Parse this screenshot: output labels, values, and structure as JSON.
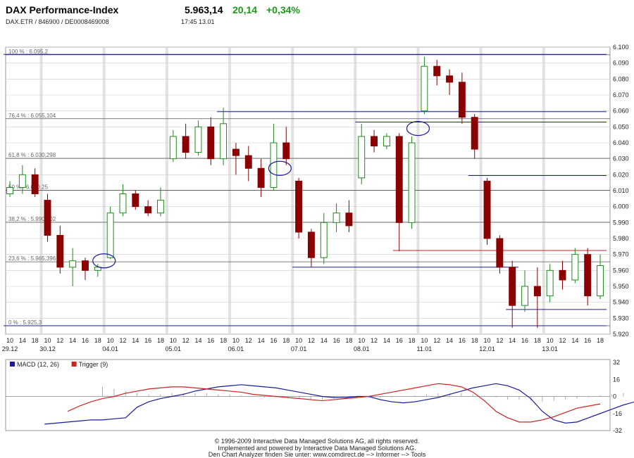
{
  "header": {
    "title": "DAX Performance-Index",
    "subtitle": "DAX.ETR  /  846900  /  DE0008469008",
    "price": "5.963,14",
    "change": "20,14",
    "change_pct": "+0,34%",
    "time": "17:45   13.01"
  },
  "colors": {
    "up": "#1d8a1d",
    "down": "#8b0000",
    "hline": "#1a1a9a",
    "red_line": "#cc2222",
    "grid": "#cccccc",
    "fib": "#555555"
  },
  "chart_data": [
    {
      "type": "candlestick",
      "ylim": [
        5920,
        6100
      ],
      "yticks": [
        "6.100",
        "6.090",
        "6.080",
        "6.070",
        "6.060",
        "6.050",
        "6.040",
        "6.030",
        "6.020",
        "6.010",
        "6.000",
        "5.990",
        "5.980",
        "5.970",
        "5.960",
        "5.950",
        "5.940",
        "5.930",
        "5.920"
      ],
      "ytick_values": [
        6100,
        6090,
        6080,
        6070,
        6060,
        6050,
        6040,
        6030,
        6020,
        6010,
        6000,
        5990,
        5980,
        5970,
        5960,
        5950,
        5940,
        5930,
        5920
      ],
      "hour_ticks": [
        "10",
        "14",
        "18",
        "10",
        "12",
        "14",
        "16",
        "18",
        "10",
        "12",
        "14",
        "16",
        "18",
        "10",
        "12",
        "14",
        "16",
        "18",
        "10",
        "12",
        "14",
        "16",
        "18",
        "10",
        "12",
        "14",
        "16",
        "18",
        "10",
        "12",
        "14",
        "16",
        "18",
        "10",
        "12",
        "14",
        "16",
        "18",
        "10",
        "12",
        "14",
        "16",
        "18",
        "10",
        "12",
        "14",
        "16",
        "18"
      ],
      "day_labels": [
        {
          "label": "29.12",
          "idx": 0
        },
        {
          "label": "30.12",
          "idx": 3
        },
        {
          "label": "04.01",
          "idx": 8
        },
        {
          "label": "05.01",
          "idx": 13
        },
        {
          "label": "06.01",
          "idx": 18
        },
        {
          "label": "07.01",
          "idx": 23
        },
        {
          "label": "08.01",
          "idx": 28
        },
        {
          "label": "11.01",
          "idx": 33
        },
        {
          "label": "12.01",
          "idx": 38
        },
        {
          "label": "13.01",
          "idx": 43
        }
      ],
      "fib_levels": [
        {
          "label": "100 % : 6.095,2",
          "value": 6095.2
        },
        {
          "label": "76,4 % : 6.055,104",
          "value": 6055.104
        },
        {
          "label": "61,8 % : 6.030,298",
          "value": 6030.298
        },
        {
          "label": "50 % : 6.010,25",
          "value": 6010.25
        },
        {
          "label": "38,2 % : 5.990,202",
          "value": 5990.202
        },
        {
          "label": "23,6 % : 5.965,396",
          "value": 5965.396
        },
        {
          "label": "0 % : 5.925,3",
          "value": 5925.3
        }
      ],
      "series": [
        {
          "time": "29.12 10",
          "open": 6008,
          "high": 6016,
          "low": 6006,
          "close": 6012
        },
        {
          "time": "29.12 14",
          "open": 6012,
          "high": 6026,
          "low": 6008,
          "close": 6020
        },
        {
          "time": "29.12 18",
          "open": 6020,
          "high": 6024,
          "low": 6006,
          "close": 6008
        },
        {
          "time": "30.12 10",
          "open": 6004,
          "high": 6008,
          "low": 5978,
          "close": 5982
        },
        {
          "time": "30.12 12",
          "open": 5982,
          "high": 5988,
          "low": 5958,
          "close": 5962
        },
        {
          "time": "30.12 14",
          "open": 5962,
          "high": 5974,
          "low": 5950,
          "close": 5966
        },
        {
          "time": "30.12 16",
          "open": 5966,
          "high": 5968,
          "low": 5954,
          "close": 5960
        },
        {
          "time": "30.12 18",
          "open": 5960,
          "high": 5964,
          "low": 5956,
          "close": 5962
        },
        {
          "time": "04.01 10",
          "open": 5968,
          "high": 6000,
          "low": 5967,
          "close": 5996
        },
        {
          "time": "04.01 12",
          "open": 5996,
          "high": 6014,
          "low": 5994,
          "close": 6008
        },
        {
          "time": "04.01 14",
          "open": 6008,
          "high": 6010,
          "low": 5998,
          "close": 6000
        },
        {
          "time": "04.01 16",
          "open": 6000,
          "high": 6004,
          "low": 5994,
          "close": 5996
        },
        {
          "time": "04.01 18",
          "open": 5996,
          "high": 6012,
          "low": 5994,
          "close": 6004
        },
        {
          "time": "05.01 10",
          "open": 6030,
          "high": 6048,
          "low": 6028,
          "close": 6044
        },
        {
          "time": "05.01 12",
          "open": 6044,
          "high": 6052,
          "low": 6030,
          "close": 6034
        },
        {
          "time": "05.01 14",
          "open": 6034,
          "high": 6054,
          "low": 6032,
          "close": 6050
        },
        {
          "time": "05.01 16",
          "open": 6050,
          "high": 6056,
          "low": 6026,
          "close": 6030
        },
        {
          "time": "05.01 18",
          "open": 6030,
          "high": 6062,
          "low": 6026,
          "close": 6052
        },
        {
          "time": "06.01 10",
          "open": 6036,
          "high": 6040,
          "low": 6020,
          "close": 6032
        },
        {
          "time": "06.01 12",
          "open": 6032,
          "high": 6038,
          "low": 6016,
          "close": 6024
        },
        {
          "time": "06.01 14",
          "open": 6024,
          "high": 6030,
          "low": 6006,
          "close": 6012
        },
        {
          "time": "06.01 16",
          "open": 6012,
          "high": 6052,
          "low": 6010,
          "close": 6040
        },
        {
          "time": "06.01 18",
          "open": 6040,
          "high": 6050,
          "low": 6026,
          "close": 6030
        },
        {
          "time": "07.01 10",
          "open": 6016,
          "high": 6018,
          "low": 5980,
          "close": 5984
        },
        {
          "time": "07.01 12",
          "open": 5984,
          "high": 5986,
          "low": 5962,
          "close": 5968
        },
        {
          "time": "07.01 14",
          "open": 5968,
          "high": 5996,
          "low": 5964,
          "close": 5990
        },
        {
          "time": "07.01 16",
          "open": 5990,
          "high": 6002,
          "low": 5984,
          "close": 5996
        },
        {
          "time": "07.01 18",
          "open": 5996,
          "high": 6004,
          "low": 5984,
          "close": 5988
        },
        {
          "time": "08.01 10",
          "open": 6018,
          "high": 6052,
          "low": 6014,
          "close": 6044
        },
        {
          "time": "08.01 12",
          "open": 6044,
          "high": 6048,
          "low": 6034,
          "close": 6038
        },
        {
          "time": "08.01 14",
          "open": 6038,
          "high": 6046,
          "low": 6036,
          "close": 6044
        },
        {
          "time": "08.01 16",
          "open": 6044,
          "high": 6046,
          "low": 5972,
          "close": 5990
        },
        {
          "time": "08.01 18",
          "open": 5990,
          "high": 6044,
          "low": 5986,
          "close": 6040
        },
        {
          "time": "11.01 10",
          "open": 6060,
          "high": 6094,
          "low": 6058,
          "close": 6088
        },
        {
          "time": "11.01 12",
          "open": 6088,
          "high": 6092,
          "low": 6076,
          "close": 6082
        },
        {
          "time": "11.01 14",
          "open": 6082,
          "high": 6086,
          "low": 6070,
          "close": 6078
        },
        {
          "time": "11.01 16",
          "open": 6078,
          "high": 6084,
          "low": 6052,
          "close": 6056
        },
        {
          "time": "11.01 18",
          "open": 6056,
          "high": 6058,
          "low": 6030,
          "close": 6036
        },
        {
          "time": "12.01 10",
          "open": 6016,
          "high": 6018,
          "low": 5976,
          "close": 5980
        },
        {
          "time": "12.01 12",
          "open": 5980,
          "high": 5982,
          "low": 5958,
          "close": 5962
        },
        {
          "time": "12.01 14",
          "open": 5962,
          "high": 5966,
          "low": 5924,
          "close": 5938
        },
        {
          "time": "12.01 16",
          "open": 5938,
          "high": 5960,
          "low": 5934,
          "close": 5950
        },
        {
          "time": "12.01 18",
          "open": 5950,
          "high": 5962,
          "low": 5924,
          "close": 5944
        },
        {
          "time": "13.01 10",
          "open": 5944,
          "high": 5964,
          "low": 5940,
          "close": 5960
        },
        {
          "time": "13.01 12",
          "open": 5960,
          "high": 5966,
          "low": 5948,
          "close": 5954
        },
        {
          "time": "13.01 14",
          "open": 5954,
          "high": 5974,
          "low": 5952,
          "close": 5970
        },
        {
          "time": "13.01 16",
          "open": 5970,
          "high": 5974,
          "low": 5938,
          "close": 5944
        },
        {
          "time": "13.01 18",
          "open": 5944,
          "high": 5970,
          "low": 5942,
          "close": 5963
        }
      ],
      "support_resistance_lines": [
        {
          "value": 6095.5,
          "from_idx": 0,
          "to_idx": 47,
          "color": "#1a1a9a"
        },
        {
          "value": 6059.5,
          "from_idx": 17,
          "to_idx": 47,
          "color": "#1a1a9a"
        },
        {
          "value": 6053,
          "from_idx": 28,
          "to_idx": 47,
          "color": "#1a1a9a"
        },
        {
          "value": 6019.5,
          "from_idx": 37,
          "to_idx": 47,
          "color": "#1a1a9a"
        },
        {
          "value": 5972.5,
          "from_idx": 31,
          "to_idx": 47,
          "color": "#cc2222"
        },
        {
          "value": 5962,
          "from_idx": 23,
          "to_idx": 40,
          "color": "#1a1a9a"
        },
        {
          "value": 5935.5,
          "from_idx": 40,
          "to_idx": 47,
          "color": "#1a1a9a"
        },
        {
          "value": 5925.3,
          "from_idx": 0,
          "to_idx": 47,
          "color": "#1a1a9a"
        }
      ],
      "gaps_marked": [
        {
          "idx": 8,
          "value": 5966
        },
        {
          "idx": 22,
          "value": 6024
        },
        {
          "idx": 33,
          "value": 6049
        }
      ]
    },
    {
      "type": "line",
      "title": "MACD",
      "legend": [
        {
          "name": "MACD (12, 26)",
          "color": "#1a1a9a"
        },
        {
          "name": "Trigger (9)",
          "color": "#cc2222"
        }
      ],
      "ylim": [
        -32,
        32
      ],
      "yticks": [
        "32",
        "16",
        "0",
        "-16",
        "-32"
      ],
      "ytick_values": [
        32,
        16,
        0,
        -16,
        -32
      ],
      "series": [
        {
          "name": "MACD (12, 26)",
          "start_idx": 3,
          "values": [
            -26,
            -25,
            -24,
            -23,
            -22,
            -22,
            -21,
            -20,
            -10,
            -5,
            -2,
            0,
            2,
            5,
            7,
            9,
            10,
            11,
            10,
            9,
            8,
            6,
            4,
            2,
            0,
            -1,
            -1,
            0,
            0,
            -3,
            -5,
            -6,
            -5,
            -3,
            -1,
            2,
            5,
            8,
            10,
            12,
            10,
            6,
            -2,
            -14,
            -22,
            -25,
            -24,
            -20,
            -16,
            -12,
            -8,
            -5
          ]
        },
        {
          "name": "Trigger (9)",
          "start_idx": 5,
          "values": [
            -14,
            -9,
            -5,
            -2,
            0,
            3,
            5,
            7,
            8,
            9,
            9,
            8,
            7,
            6,
            5,
            4,
            2,
            1,
            0,
            -1,
            -2,
            -3,
            -4,
            -3,
            -2,
            -1,
            0,
            2,
            4,
            6,
            8,
            10,
            12,
            11,
            9,
            4,
            -4,
            -14,
            -20,
            -24,
            -24,
            -22,
            -19,
            -15,
            -11,
            -9,
            -7
          ]
        },
        {
          "name": "histogram",
          "start_idx": 8,
          "values": [
            9,
            7,
            5,
            3,
            2,
            2,
            3,
            3,
            3,
            3,
            2,
            2,
            1,
            0,
            -1,
            -1,
            -2,
            -2,
            -3,
            -3,
            -2,
            -2,
            -2,
            -1,
            -1,
            -1,
            0,
            1,
            2,
            3,
            3,
            3,
            2,
            1,
            -1,
            -3,
            -3,
            -4,
            -5,
            -4,
            -3,
            -2,
            -1,
            1,
            2,
            3,
            4
          ]
        }
      ]
    }
  ],
  "footer": {
    "line1": "© 1996-2009 Interactive Data Managed Solutions AG, all rights reserved.",
    "line2": "Implemented and powered by  Interactive Data Managed Solutions AG.",
    "line3": "Den Chart Analyzer finden Sie unter: www.comdirect.de --> Informer --> Tools"
  }
}
